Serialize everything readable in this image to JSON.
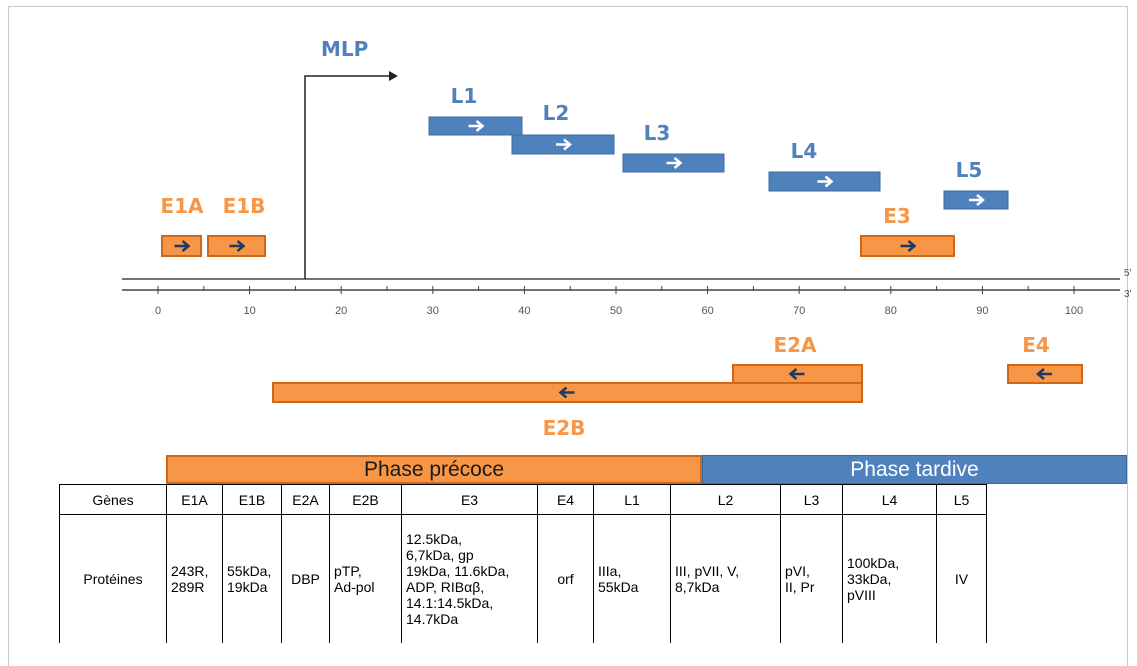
{
  "promoter": {
    "label": "MLP",
    "color": "#4f81bd"
  },
  "scale": {
    "ticks": [
      "0",
      "10",
      "20",
      "30",
      "40",
      "50",
      "60",
      "70",
      "80",
      "90",
      "100"
    ],
    "strand_top": "5'",
    "strand_bottom": "3'"
  },
  "colors": {
    "early": "#f79646",
    "early_border": "#d0661a",
    "late": "#4f81bd",
    "arrow_dark": "#1f3864",
    "arrow_light": "#ffffff"
  },
  "transcription_units": [
    {
      "name": "E1A",
      "phase": "early",
      "direction": "right",
      "strand": "top"
    },
    {
      "name": "E1B",
      "phase": "early",
      "direction": "right",
      "strand": "top"
    },
    {
      "name": "L1",
      "phase": "late",
      "direction": "right",
      "strand": "top"
    },
    {
      "name": "L2",
      "phase": "late",
      "direction": "right",
      "strand": "top"
    },
    {
      "name": "L3",
      "phase": "late",
      "direction": "right",
      "strand": "top"
    },
    {
      "name": "L4",
      "phase": "late",
      "direction": "right",
      "strand": "top"
    },
    {
      "name": "L5",
      "phase": "late",
      "direction": "right",
      "strand": "top"
    },
    {
      "name": "E3",
      "phase": "early",
      "direction": "right",
      "strand": "top"
    },
    {
      "name": "E2A",
      "phase": "early",
      "direction": "left",
      "strand": "bottom"
    },
    {
      "name": "E2B",
      "phase": "early",
      "direction": "left",
      "strand": "bottom"
    },
    {
      "name": "E4",
      "phase": "early",
      "direction": "left",
      "strand": "bottom"
    }
  ],
  "phases": {
    "early": "Phase précoce",
    "late": "Phase tardive"
  },
  "table": {
    "row_headers": {
      "genes": "Gènes",
      "proteins": "Protéines"
    },
    "columns": [
      {
        "gene": "E1A",
        "proteins": [
          "243R,",
          "289R"
        ]
      },
      {
        "gene": "E1B",
        "proteins": [
          "55kDa,",
          "19kDa"
        ]
      },
      {
        "gene": "E2A",
        "proteins": [
          "DBP"
        ]
      },
      {
        "gene": "E2B",
        "proteins": [
          "pTP,",
          "Ad-pol"
        ]
      },
      {
        "gene": "E3",
        "proteins": [
          "12.5kDa,",
          "6,7kDa, gp",
          "19kDa, 11.6kDa,",
          "ADP, RIBαβ,",
          "14.1:14.5kDa,",
          "14.7kDa"
        ]
      },
      {
        "gene": "E4",
        "proteins": [
          "orf"
        ]
      },
      {
        "gene": "L1",
        "proteins": [
          "IIIa,",
          "55kDa"
        ]
      },
      {
        "gene": "L2",
        "proteins": [
          "III, pVII, V,",
          "8,7kDa"
        ]
      },
      {
        "gene": "L3",
        "proteins": [
          "pVI,",
          "II, Pr"
        ]
      },
      {
        "gene": "L4",
        "proteins": [
          "100kDa,",
          "33kDa,",
          "pVIII"
        ]
      },
      {
        "gene": "L5",
        "proteins": [
          "IV"
        ]
      }
    ]
  }
}
